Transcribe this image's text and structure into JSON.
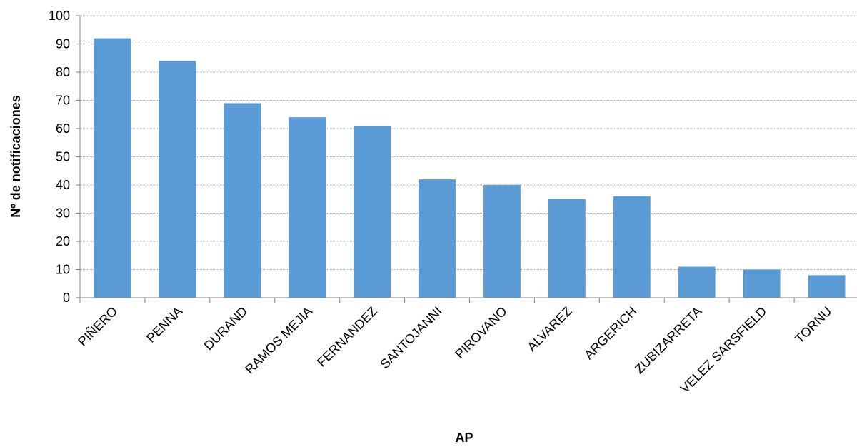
{
  "chart_data": {
    "type": "bar",
    "categories": [
      "PIÑERO",
      "PENNA",
      "DURAND",
      "RAMOS MEJIA",
      "FERNANDEZ",
      "SANTOJANNI",
      "PIROVANO",
      "ALVAREZ",
      "ARGERICH",
      "ZUBIZARRETA",
      "VELEZ SARSFIELD",
      "TORNU"
    ],
    "values": [
      92,
      84,
      69,
      64,
      61,
      42,
      40,
      35,
      36,
      11,
      10,
      8
    ],
    "title": "",
    "xlabel": "AP",
    "ylabel": "Nº de notificaciones",
    "ylim": [
      0,
      100
    ],
    "yticks": [
      "0",
      "10",
      "20",
      "30",
      "40",
      "50",
      "60",
      "70",
      "80",
      "90",
      "100"
    ],
    "grid": true,
    "legend": "none",
    "bar_color": "#5B9BD5",
    "grid_color": "#A6A6A6",
    "axis_color": "#868686"
  }
}
